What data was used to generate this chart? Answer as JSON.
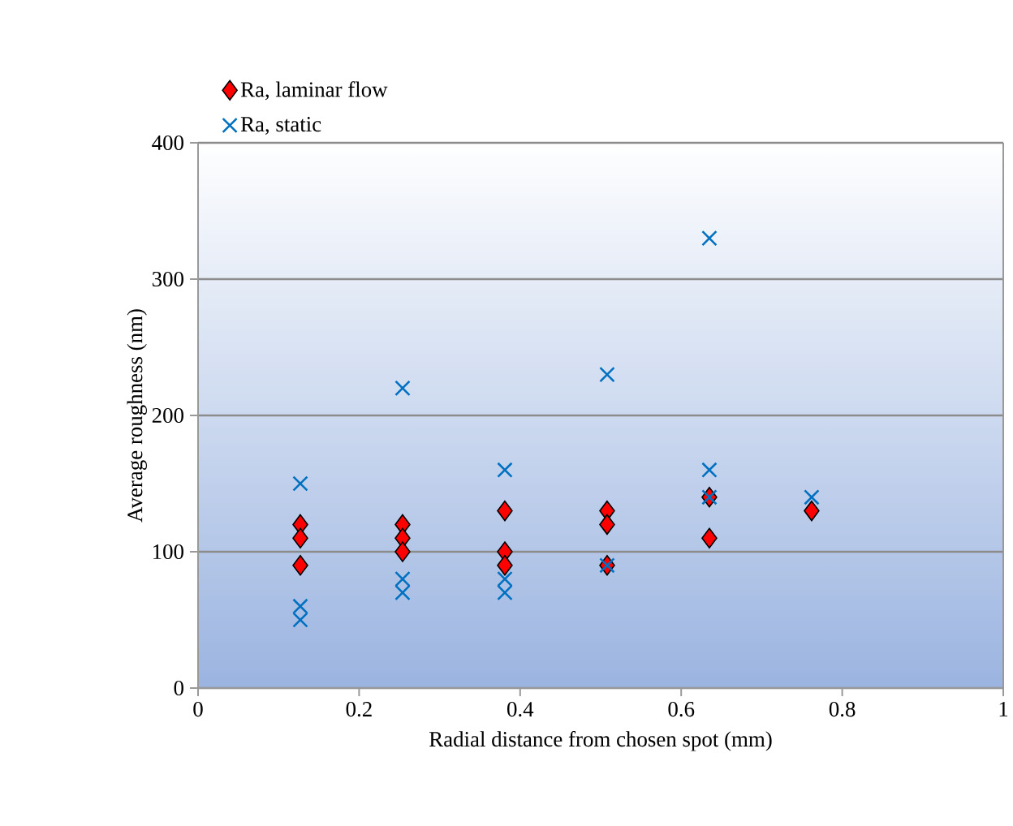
{
  "chart_data": {
    "type": "scatter",
    "xlabel": "Radial distance from chosen spot (mm)",
    "ylabel": "Average roughness (nm)",
    "xlim": [
      0,
      1
    ],
    "xticks": [
      0,
      0.2,
      0.4,
      0.6,
      0.8,
      1
    ],
    "ylim": [
      0,
      400
    ],
    "yticks": [
      0,
      100,
      200,
      300,
      400
    ],
    "grid": "y",
    "legend": "top left",
    "series": [
      {
        "name": "Ra, laminar flow",
        "color": "#ff0000",
        "marker": "diamond",
        "x": [
          0.127,
          0.127,
          0.127,
          0.254,
          0.254,
          0.254,
          0.381,
          0.381,
          0.381,
          0.508,
          0.508,
          0.508,
          0.635,
          0.635,
          0.762
        ],
        "values": [
          120,
          110,
          90,
          120,
          110,
          100,
          130,
          100,
          90,
          130,
          120,
          90,
          140,
          110,
          130
        ]
      },
      {
        "name": "Ra, static",
        "color": "#0070c0",
        "marker": "cross",
        "x": [
          0.127,
          0.127,
          0.127,
          0.254,
          0.254,
          0.254,
          0.381,
          0.381,
          0.381,
          0.508,
          0.508,
          0.635,
          0.635,
          0.635,
          0.762
        ],
        "values": [
          150,
          60,
          50,
          220,
          80,
          70,
          160,
          80,
          70,
          230,
          90,
          330,
          160,
          140,
          140
        ]
      }
    ]
  }
}
